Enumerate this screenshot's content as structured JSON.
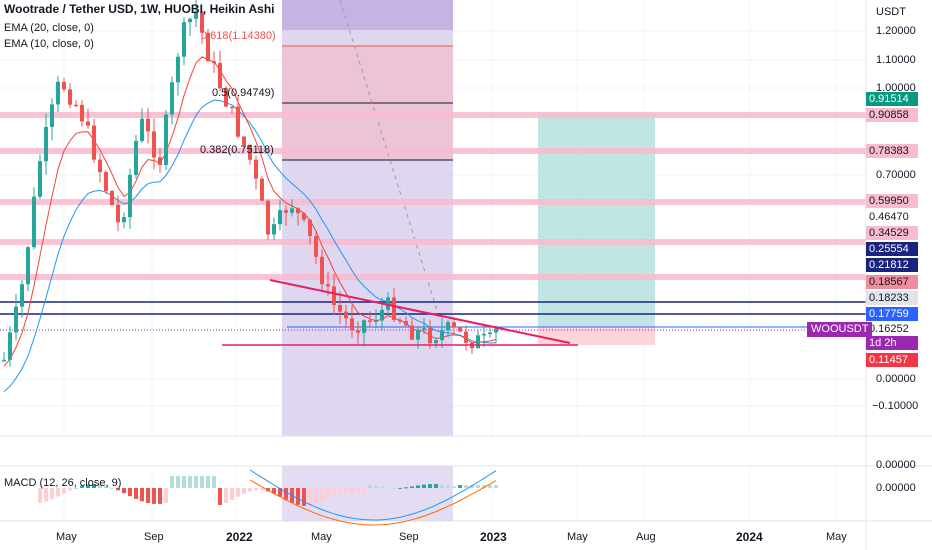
{
  "header": {
    "title": "Wootrade / Tether USD, 1W, HUOBI, Heikin Ashi",
    "indicator_1": "EMA (20, close, 0)",
    "indicator_2": "EMA (10, close, 0)"
  },
  "macd": {
    "label": "MACD (12, 26, close, 9)",
    "axis_labels": [
      "0.00000"
    ],
    "small_axis_label": "0.00000"
  },
  "price_axis": {
    "currency": "USDT",
    "ticks": [
      {
        "label": "1.20000",
        "value": 1.2
      },
      {
        "label": "1.10000",
        "value": 1.1
      },
      {
        "label": "1.00000",
        "value": 1.0
      },
      {
        "label": "0.70000",
        "value": 0.7
      },
      {
        "label": "0.00000",
        "value": 0.0
      },
      {
        "label": "−0.10000",
        "value": -0.1
      }
    ]
  },
  "price_badges": [
    {
      "label": "0.91514",
      "bg": "#089981",
      "fg": "#ffffff",
      "value": 0.91514
    },
    {
      "label": "0.90858",
      "bg": "#f8bbd0",
      "fg": "#131722",
      "value": 0.90858
    },
    {
      "label": "0.78383",
      "bg": "#f8bbd0",
      "fg": "#131722",
      "value": 0.78383
    },
    {
      "label": "0.59950",
      "bg": "#f8bbd0",
      "fg": "#131722",
      "value": 0.5995
    },
    {
      "label": "0.46470",
      "bg": "#ffffff",
      "fg": "#131722",
      "value": 0.4647
    },
    {
      "label": "0.34529",
      "bg": "#f8bbd0",
      "fg": "#131722",
      "value": 0.34529
    },
    {
      "label": "0.25554",
      "bg": "#1a237e",
      "fg": "#ffffff",
      "value": 0.25554
    },
    {
      "label": "0.21812",
      "bg": "#1a237e",
      "fg": "#ffffff",
      "value": 0.21812
    },
    {
      "label": "0.18567",
      "bg": "#f28b9a",
      "fg": "#131722",
      "value": 0.18567
    },
    {
      "label": "0.18233",
      "bg": "#e0e3eb",
      "fg": "#131722",
      "value": 0.18233
    },
    {
      "label": "0.17759",
      "bg": "#2962ff",
      "fg": "#ffffff",
      "value": 0.17759
    },
    {
      "label": "0.16252",
      "bg": "#ffffff",
      "fg": "#131722",
      "value": 0.16252
    },
    {
      "label": "1d 2h",
      "bg": "#9c27b0",
      "fg": "#ffffff",
      "value": 0.155
    },
    {
      "label": "0.11457",
      "bg": "#f23645",
      "fg": "#ffffff",
      "value": 0.11457
    }
  ],
  "symbol_tag": {
    "label": "WOOUSDT",
    "bg": "#9c27b0",
    "fg": "#ffffff"
  },
  "fib_labels": [
    {
      "label": "0.618(1.14380)",
      "value": 1.1438
    },
    {
      "label": "0.5(0.94749)",
      "value": 0.94749
    },
    {
      "label": "0.382(0.75118)",
      "value": 0.75118
    }
  ],
  "time_axis": [
    {
      "label": "May",
      "bold": false
    },
    {
      "label": "Sep",
      "bold": false
    },
    {
      "label": "2022",
      "bold": true
    },
    {
      "label": "May",
      "bold": false
    },
    {
      "label": "Sep",
      "bold": false
    },
    {
      "label": "2023",
      "bold": true
    },
    {
      "label": "May",
      "bold": false
    },
    {
      "label": "Aug",
      "bold": false
    },
    {
      "label": "2024",
      "bold": true
    },
    {
      "label": "May",
      "bold": false
    }
  ],
  "colors": {
    "up": "#26a69a",
    "down": "#ef5350",
    "fib_zone": "#d1c4e9",
    "target_zone": "#b2dfdb",
    "stop_zone": "#fbd5da",
    "support_band": "#f8bbd0",
    "blue_line": "#1a237e"
  }
}
